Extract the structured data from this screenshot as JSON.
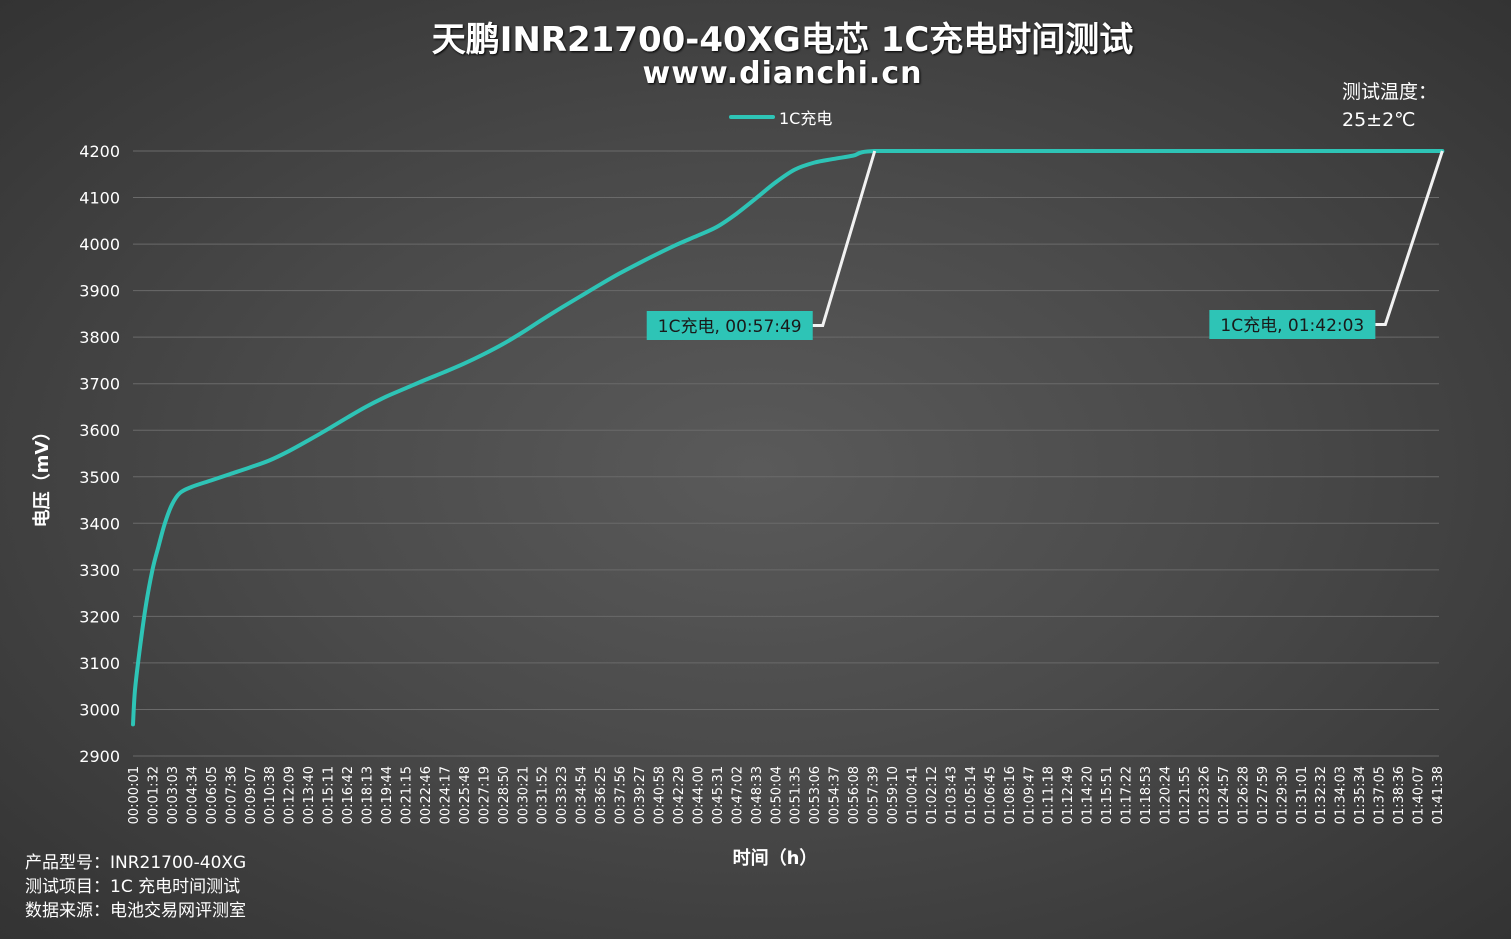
{
  "header": {
    "title": "天鹏INR21700-40XG电芯 1C充电时间测试",
    "subtitle": "www.dianchi.cn"
  },
  "test_temperature": {
    "label": "测试温度：",
    "value": "25±2℃"
  },
  "footer": {
    "product": "产品型号：INR21700-40XG",
    "item": "测试项目：1C 充电时间测试",
    "source": "数据来源：电池交易网评测室"
  },
  "colors": {
    "series": "#2ec4b6",
    "grid": "#6a6a6a",
    "leader": "#f2f2f2"
  },
  "chart_data": {
    "type": "line",
    "xlabel": "时间（h）",
    "ylabel": "电压（mV）",
    "ylim": [
      2900,
      4200
    ],
    "yticks": [
      2900,
      3000,
      3100,
      3200,
      3300,
      3400,
      3500,
      3600,
      3700,
      3800,
      3900,
      4000,
      4100,
      4200
    ],
    "legend_position": "top-center",
    "grid": true,
    "x_tick_labels": [
      "00:00:01",
      "00:01:32",
      "00:03:03",
      "00:04:34",
      "00:06:05",
      "00:07:36",
      "00:09:07",
      "00:10:38",
      "00:12:09",
      "00:13:40",
      "00:15:11",
      "00:16:42",
      "00:18:13",
      "00:19:44",
      "00:21:15",
      "00:22:46",
      "00:24:17",
      "00:25:48",
      "00:27:19",
      "00:28:50",
      "00:30:21",
      "00:31:52",
      "00:33:23",
      "00:34:54",
      "00:36:25",
      "00:37:56",
      "00:39:27",
      "00:40:58",
      "00:42:29",
      "00:44:00",
      "00:45:31",
      "00:47:02",
      "00:48:33",
      "00:50:04",
      "00:51:35",
      "00:53:06",
      "00:54:37",
      "00:56:08",
      "00:57:39",
      "00:59:10",
      "01:00:41",
      "01:02:12",
      "01:03:43",
      "01:05:14",
      "01:06:45",
      "01:08:16",
      "01:09:47",
      "01:11:18",
      "01:12:49",
      "01:14:20",
      "01:15:51",
      "01:17:22",
      "01:18:53",
      "01:20:24",
      "01:21:55",
      "01:23:26",
      "01:24:57",
      "01:26:28",
      "01:27:59",
      "01:29:30",
      "01:31:01",
      "01:32:32",
      "01:34:03",
      "01:35:34",
      "01:37:05",
      "01:38:36",
      "01:40:07",
      "01:41:38"
    ],
    "series": [
      {
        "name": "1C充电",
        "x": [
          "00:00:01",
          "00:00:10",
          "00:00:30",
          "00:01:00",
          "00:01:32",
          "00:02:00",
          "00:02:30",
          "00:03:03",
          "00:03:40",
          "00:04:34",
          "00:06:05",
          "00:07:36",
          "00:09:07",
          "00:10:38",
          "00:12:09",
          "00:13:40",
          "00:15:11",
          "00:16:42",
          "00:18:13",
          "00:19:44",
          "00:21:15",
          "00:22:46",
          "00:24:17",
          "00:25:48",
          "00:27:19",
          "00:28:50",
          "00:30:21",
          "00:31:52",
          "00:33:23",
          "00:34:54",
          "00:36:25",
          "00:37:56",
          "00:39:27",
          "00:40:58",
          "00:42:29",
          "00:44:00",
          "00:45:31",
          "00:47:02",
          "00:48:33",
          "00:50:04",
          "00:51:35",
          "00:53:06",
          "00:54:37",
          "00:56:08",
          "00:57:49",
          "01:05:14",
          "01:15:51",
          "01:26:28",
          "01:37:05",
          "01:42:03"
        ],
        "values": [
          2968,
          3040,
          3120,
          3220,
          3300,
          3350,
          3400,
          3440,
          3465,
          3478,
          3492,
          3506,
          3520,
          3535,
          3555,
          3578,
          3602,
          3627,
          3651,
          3672,
          3690,
          3708,
          3725,
          3743,
          3763,
          3785,
          3810,
          3837,
          3863,
          3888,
          3913,
          3937,
          3959,
          3980,
          4000,
          4018,
          4037,
          4065,
          4098,
          4132,
          4160,
          4175,
          4183,
          4190,
          4200,
          4200,
          4200,
          4200,
          4200,
          4200
        ]
      }
    ],
    "annotations": [
      {
        "text": "1C充电, 00:57:49",
        "x": "00:57:49",
        "y": 4200
      },
      {
        "text": "1C充电, 01:42:03",
        "x": "01:42:03",
        "y": 4200
      }
    ]
  }
}
